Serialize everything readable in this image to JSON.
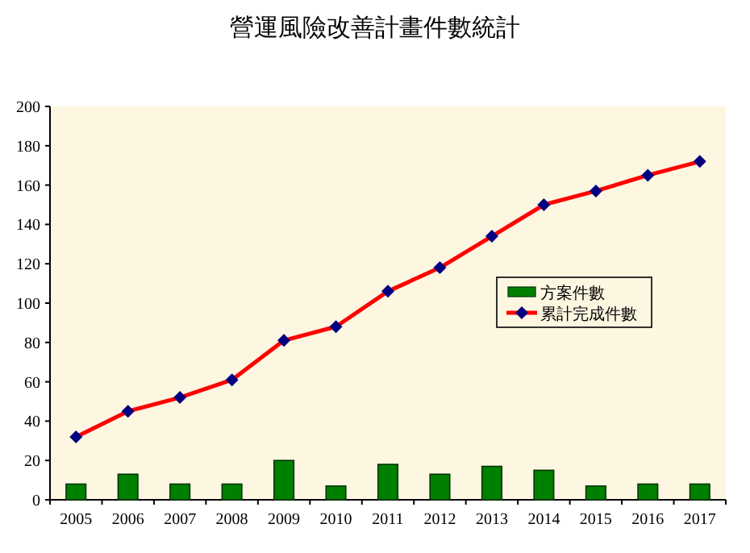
{
  "chart_data": {
    "type": "bar",
    "title": "營運風險改善計畫件數統計",
    "categories": [
      "2005",
      "2006",
      "2007",
      "2008",
      "2009",
      "2010",
      "2011",
      "2012",
      "2013",
      "2014",
      "2015",
      "2016",
      "2017"
    ],
    "series": [
      {
        "name": "方案件數",
        "color": "#008000",
        "values": [
          8,
          13,
          8,
          8,
          20,
          7,
          18,
          13,
          17,
          15,
          7,
          8,
          8
        ]
      },
      {
        "name": "累計完成件數",
        "type": "line",
        "color": "#ff0000",
        "marker": "diamond",
        "values": [
          32,
          45,
          52,
          61,
          81,
          88,
          106,
          118,
          134,
          150,
          157,
          165,
          172
        ]
      }
    ],
    "ylim": [
      0,
      200
    ],
    "yticks": [
      0,
      20,
      40,
      60,
      80,
      100,
      120,
      140,
      160,
      180,
      200
    ],
    "grid": false,
    "legend": "right"
  }
}
